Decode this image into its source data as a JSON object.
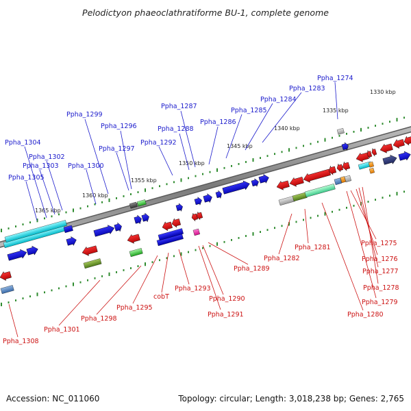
{
  "title": "Pelodictyon phaeoclathratiforme BU-1, complete genome",
  "footer": {
    "accession": "Accession: NC_011060",
    "summary": "Topology: circular; Length: 3,018,238 bp; Genes: 2,765"
  },
  "colors": {
    "forward_label": "#1a1acc",
    "reverse_label": "#cc1111",
    "backbone": "#888888",
    "tick": "#2e8b2e"
  },
  "scale_labels": [
    "1330 kbp",
    "1335 kbp",
    "1340 kbp",
    "1345 kbp",
    "1350 kbp",
    "1355 kbp",
    "1360 kbp",
    "1365 kbp"
  ],
  "forward_genes": [
    "Ppha_1274",
    "Ppha_1283",
    "Ppha_1284",
    "Ppha_1285",
    "Ppha_1286",
    "Ppha_1287",
    "Ppha_1288",
    "Ppha_1292",
    "Ppha_1296",
    "Ppha_1297",
    "Ppha_1299",
    "Ppha_1300",
    "Ppha_1302",
    "Ppha_1303",
    "Ppha_1304",
    "Ppha_1305"
  ],
  "reverse_genes": [
    "Ppha_1275",
    "Ppha_1276",
    "Ppha_1277",
    "Ppha_1278",
    "Ppha_1279",
    "Ppha_1280",
    "Ppha_1281",
    "Ppha_1282",
    "Ppha_1289",
    "Ppha_1290",
    "Ppha_1291",
    "Ppha_1293",
    "cobT",
    "Ppha_1295",
    "Ppha_1298",
    "Ppha_1301",
    "Ppha_1308"
  ]
}
